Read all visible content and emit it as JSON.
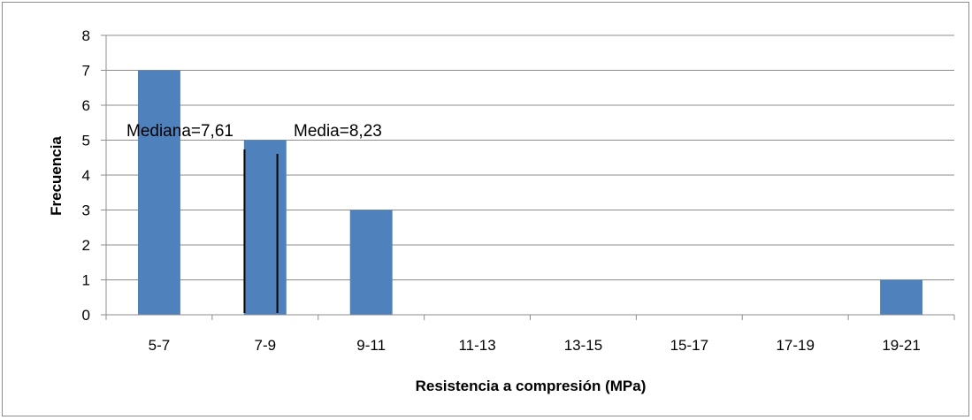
{
  "chart_data": {
    "type": "bar",
    "title": "",
    "xlabel": "Resistencia a compresión (MPa)",
    "ylabel": "Frecuencia",
    "categories": [
      "5-7",
      "7-9",
      "9-11",
      "11-13",
      "13-15",
      "15-17",
      "17-19",
      "19-21"
    ],
    "values": [
      7,
      5,
      3,
      0,
      0,
      0,
      0,
      1
    ],
    "ylim": [
      0,
      8
    ],
    "yticks": [
      "0",
      "1",
      "2",
      "3",
      "4",
      "5",
      "6",
      "7",
      "8"
    ],
    "grid": true,
    "bar_color": "#4f81bd",
    "annotations": [
      {
        "text": "Mediana=7,61",
        "x": 7.61
      },
      {
        "text": "Media=8,23",
        "x": 8.23
      }
    ]
  }
}
